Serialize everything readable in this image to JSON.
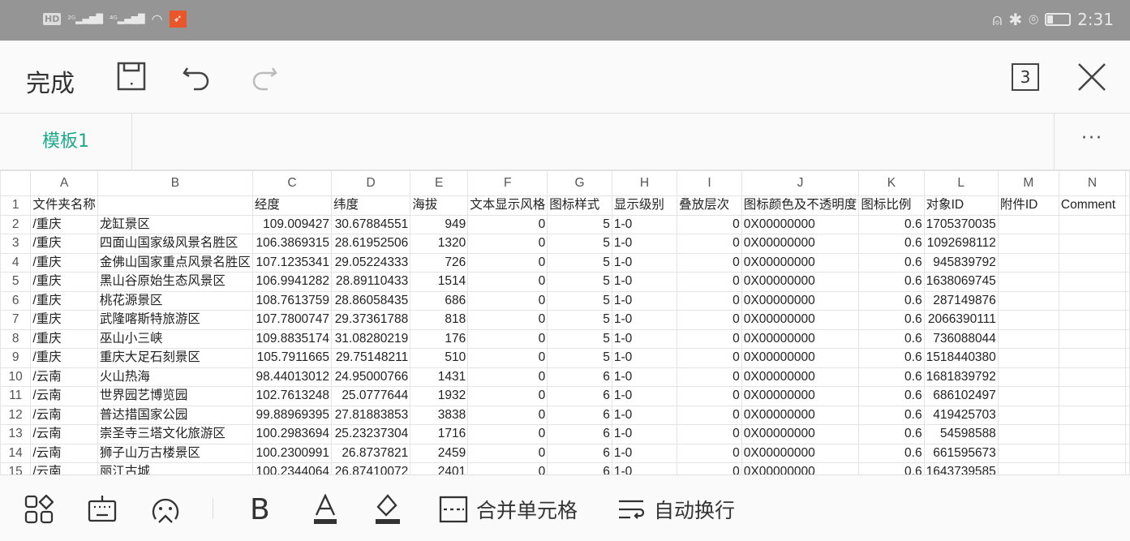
{
  "status_bar": {
    "left": [
      "HD 2",
      "2G",
      "4G",
      "wifi-icon",
      "app-notification-icon"
    ],
    "time": "2:31",
    "battery_level": 0.25
  },
  "toolbar": {
    "done_label": "完成",
    "tab_count": "3"
  },
  "sheet_tabs": [
    {
      "label": "模板1",
      "active": true
    }
  ],
  "more_label": "···",
  "columns": [
    "A",
    "B",
    "C",
    "D",
    "E",
    "F",
    "G",
    "H",
    "I",
    "J",
    "K",
    "L",
    "M",
    "N"
  ],
  "header_row": [
    "文件夹名称",
    "",
    "经度",
    "纬度",
    "海拔",
    "文本显示风格",
    "图标样式",
    "显示级别",
    "叠放层次",
    "图标颜色及不透明度",
    "图标比例",
    "对象ID",
    "附件ID",
    "Comment"
  ],
  "rows": [
    [
      "/重庆",
      "龙缸景区",
      "109.009427",
      "30.67884551",
      "949",
      "0",
      "5",
      "1-0",
      "0",
      "0X00000000",
      "0.6",
      "1705370035",
      "",
      ""
    ],
    [
      "/重庆",
      "四面山国家级风景名胜区",
      "106.3869315",
      "28.61952506",
      "1320",
      "0",
      "5",
      "1-0",
      "0",
      "0X00000000",
      "0.6",
      "1092698112",
      "",
      ""
    ],
    [
      "/重庆",
      "金佛山国家重点风景名胜区",
      "107.1235341",
      "29.05224333",
      "726",
      "0",
      "5",
      "1-0",
      "0",
      "0X00000000",
      "0.6",
      "945839792",
      "",
      ""
    ],
    [
      "/重庆",
      "黑山谷原始生态风景区",
      "106.9941282",
      "28.89110433",
      "1514",
      "0",
      "5",
      "1-0",
      "0",
      "0X00000000",
      "0.6",
      "1638069745",
      "",
      ""
    ],
    [
      "/重庆",
      "桃花源景区",
      "108.7613759",
      "28.86058435",
      "686",
      "0",
      "5",
      "1-0",
      "0",
      "0X00000000",
      "0.6",
      "287149876",
      "",
      ""
    ],
    [
      "/重庆",
      "武隆喀斯特旅游区",
      "107.7800747",
      "29.37361788",
      "818",
      "0",
      "5",
      "1-0",
      "0",
      "0X00000000",
      "0.6",
      "2066390111",
      "",
      ""
    ],
    [
      "/重庆",
      "巫山小三峡",
      "109.8835174",
      "31.08280219",
      "176",
      "0",
      "5",
      "1-0",
      "0",
      "0X00000000",
      "0.6",
      "736088044",
      "",
      ""
    ],
    [
      "/重庆",
      "重庆大足石刻景区",
      "105.7911665",
      "29.75148211",
      "510",
      "0",
      "5",
      "1-0",
      "0",
      "0X00000000",
      "0.6",
      "1518440380",
      "",
      ""
    ],
    [
      "/云南",
      "火山热海",
      "98.44013012",
      "24.95000766",
      "1431",
      "0",
      "6",
      "1-0",
      "0",
      "0X00000000",
      "0.6",
      "1681839792",
      "",
      ""
    ],
    [
      "/云南",
      "世界园艺博览园",
      "102.7613248",
      "25.0777644",
      "1932",
      "0",
      "6",
      "1-0",
      "0",
      "0X00000000",
      "0.6",
      "686102497",
      "",
      ""
    ],
    [
      "/云南",
      "普达措国家公园",
      "99.88969395",
      "27.81883853",
      "3838",
      "0",
      "6",
      "1-0",
      "0",
      "0X00000000",
      "0.6",
      "419425703",
      "",
      ""
    ],
    [
      "/云南",
      "崇圣寺三塔文化旅游区",
      "100.2983694",
      "25.23237304",
      "1716",
      "0",
      "6",
      "1-0",
      "0",
      "0X00000000",
      "0.6",
      "54598588",
      "",
      ""
    ],
    [
      "/云南",
      "狮子山万古楼景区",
      "100.2300991",
      "26.8737821",
      "2459",
      "0",
      "6",
      "1-0",
      "0",
      "0X00000000",
      "0.6",
      "661595673",
      "",
      ""
    ],
    [
      "/云南",
      "丽江古城",
      "100.2344064",
      "26.87410072",
      "2401",
      "0",
      "6",
      "1-0",
      "0",
      "0X00000000",
      "0.6",
      "1643739585",
      "",
      ""
    ]
  ],
  "bottom_toolbar": {
    "merge_label": "合并单元格",
    "wrap_label": "自动换行"
  }
}
